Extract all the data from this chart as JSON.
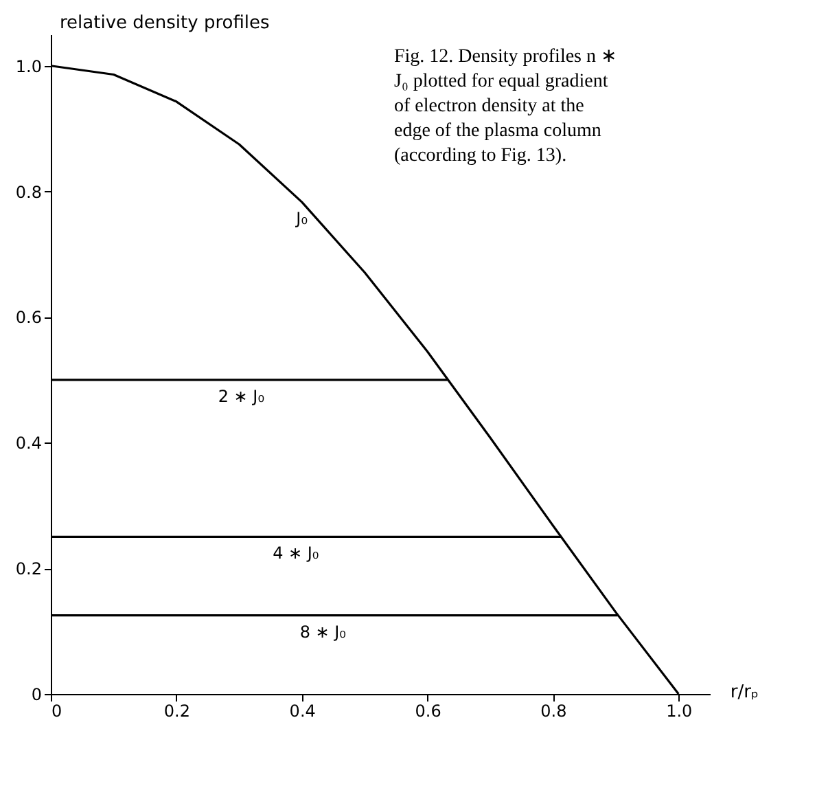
{
  "chart_data": {
    "type": "line",
    "title": "Fig. 12. Density profiles n ∗ J₀ plotted for equal gradient of electron density at the edge of the plasma column (according to Fig. 13).",
    "xlabel": "r/rₚ",
    "ylabel": "relative density profiles",
    "xlim": [
      0,
      1.05
    ],
    "ylim": [
      0,
      1.05
    ],
    "xticks": [
      0,
      0.2,
      0.4,
      0.6,
      0.8,
      {
        "value": 1,
        "label": "1.0"
      }
    ],
    "yticks": [
      0,
      0.2,
      0.4,
      0.6,
      0.8,
      {
        "value": 1,
        "label": "1.0"
      }
    ],
    "grid": false,
    "legend": false,
    "marker": "none",
    "line_style": "solid",
    "series": [
      {
        "name": "J₀",
        "color": "#000000",
        "x": [
          0,
          0.1,
          0.2,
          0.3,
          0.4,
          0.5,
          0.6,
          0.7,
          0.8,
          0.9,
          1.0
        ],
        "values": [
          1,
          0.986,
          0.943,
          0.875,
          0.783,
          0.671,
          0.545,
          0.408,
          0.268,
          0.13,
          0
        ]
      },
      {
        "name": "2 ∗ J₀",
        "color": "#000000",
        "x": [
          0,
          0.632
        ],
        "values": [
          0.5,
          0.5
        ]
      },
      {
        "name": "4 ∗ J₀",
        "color": "#000000",
        "x": [
          0,
          0.813
        ],
        "values": [
          0.25,
          0.25
        ]
      },
      {
        "name": "8 ∗ J₀",
        "color": "#000000",
        "x": [
          0,
          0.903
        ],
        "values": [
          0.125,
          0.125
        ]
      }
    ]
  }
}
